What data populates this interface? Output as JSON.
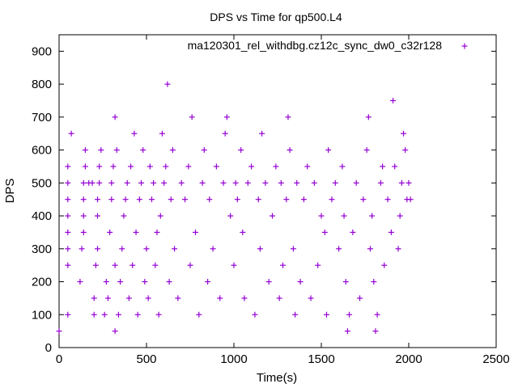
{
  "colors": {
    "series": "#9400d3",
    "axis": "#000000",
    "background": "#ffffff"
  },
  "chart_data": {
    "type": "scatter",
    "title": "DPS vs Time for qp500.L4",
    "xlabel": "Time(s)",
    "ylabel": "DPS",
    "xlim": [
      0,
      2500
    ],
    "ylim": [
      0,
      950
    ],
    "xticks": [
      0,
      500,
      1000,
      1500,
      2000,
      2500
    ],
    "yticks": [
      0,
      100,
      200,
      300,
      400,
      500,
      600,
      700,
      800,
      900
    ],
    "grid": false,
    "legend_position": "top-right",
    "series": [
      {
        "name": "ma120301_rel_withdbg.cz12c_sync_dw0_c32r128",
        "marker": "+",
        "points": [
          [
            0,
            50
          ],
          [
            50,
            100
          ],
          [
            50,
            250
          ],
          [
            50,
            300
          ],
          [
            50,
            350
          ],
          [
            50,
            400
          ],
          [
            50,
            450
          ],
          [
            50,
            500
          ],
          [
            50,
            550
          ],
          [
            70,
            650
          ],
          [
            120,
            200
          ],
          [
            130,
            300
          ],
          [
            140,
            350
          ],
          [
            140,
            400
          ],
          [
            140,
            450
          ],
          [
            140,
            500
          ],
          [
            150,
            550
          ],
          [
            150,
            600
          ],
          [
            170,
            500
          ],
          [
            190,
            500
          ],
          [
            200,
            100
          ],
          [
            200,
            150
          ],
          [
            210,
            250
          ],
          [
            220,
            300
          ],
          [
            220,
            400
          ],
          [
            220,
            450
          ],
          [
            230,
            500
          ],
          [
            230,
            550
          ],
          [
            240,
            600
          ],
          [
            260,
            100
          ],
          [
            270,
            200
          ],
          [
            280,
            150
          ],
          [
            290,
            350
          ],
          [
            300,
            450
          ],
          [
            300,
            500
          ],
          [
            310,
            550
          ],
          [
            320,
            50
          ],
          [
            320,
            250
          ],
          [
            320,
            700
          ],
          [
            330,
            600
          ],
          [
            340,
            100
          ],
          [
            350,
            200
          ],
          [
            360,
            300
          ],
          [
            370,
            400
          ],
          [
            380,
            450
          ],
          [
            390,
            500
          ],
          [
            400,
            150
          ],
          [
            410,
            550
          ],
          [
            420,
            250
          ],
          [
            430,
            650
          ],
          [
            440,
            350
          ],
          [
            450,
            100
          ],
          [
            460,
            450
          ],
          [
            470,
            500
          ],
          [
            480,
            600
          ],
          [
            490,
            200
          ],
          [
            500,
            300
          ],
          [
            510,
            150
          ],
          [
            520,
            550
          ],
          [
            530,
            450
          ],
          [
            540,
            500
          ],
          [
            550,
            250
          ],
          [
            560,
            350
          ],
          [
            570,
            100
          ],
          [
            580,
            400
          ],
          [
            590,
            650
          ],
          [
            600,
            500
          ],
          [
            610,
            550
          ],
          [
            620,
            800
          ],
          [
            630,
            200
          ],
          [
            640,
            450
          ],
          [
            650,
            600
          ],
          [
            660,
            300
          ],
          [
            680,
            150
          ],
          [
            700,
            500
          ],
          [
            720,
            450
          ],
          [
            740,
            550
          ],
          [
            750,
            250
          ],
          [
            760,
            700
          ],
          [
            780,
            350
          ],
          [
            800,
            100
          ],
          [
            820,
            500
          ],
          [
            830,
            600
          ],
          [
            850,
            200
          ],
          [
            860,
            450
          ],
          [
            880,
            300
          ],
          [
            900,
            550
          ],
          [
            920,
            150
          ],
          [
            940,
            500
          ],
          [
            950,
            650
          ],
          [
            960,
            700
          ],
          [
            980,
            400
          ],
          [
            1000,
            250
          ],
          [
            1010,
            500
          ],
          [
            1020,
            450
          ],
          [
            1040,
            600
          ],
          [
            1050,
            350
          ],
          [
            1060,
            150
          ],
          [
            1080,
            500
          ],
          [
            1100,
            550
          ],
          [
            1120,
            100
          ],
          [
            1140,
            450
          ],
          [
            1150,
            300
          ],
          [
            1160,
            650
          ],
          [
            1180,
            500
          ],
          [
            1200,
            200
          ],
          [
            1220,
            400
          ],
          [
            1240,
            550
          ],
          [
            1260,
            150
          ],
          [
            1270,
            500
          ],
          [
            1280,
            250
          ],
          [
            1300,
            450
          ],
          [
            1310,
            700
          ],
          [
            1320,
            600
          ],
          [
            1340,
            300
          ],
          [
            1350,
            100
          ],
          [
            1360,
            500
          ],
          [
            1380,
            200
          ],
          [
            1400,
            450
          ],
          [
            1420,
            550
          ],
          [
            1440,
            150
          ],
          [
            1460,
            500
          ],
          [
            1480,
            250
          ],
          [
            1500,
            400
          ],
          [
            1520,
            350
          ],
          [
            1530,
            100
          ],
          [
            1540,
            600
          ],
          [
            1560,
            450
          ],
          [
            1580,
            500
          ],
          [
            1600,
            300
          ],
          [
            1620,
            550
          ],
          [
            1630,
            400
          ],
          [
            1640,
            200
          ],
          [
            1650,
            50
          ],
          [
            1660,
            100
          ],
          [
            1680,
            350
          ],
          [
            1700,
            500
          ],
          [
            1720,
            150
          ],
          [
            1740,
            450
          ],
          [
            1760,
            600
          ],
          [
            1770,
            700
          ],
          [
            1780,
            300
          ],
          [
            1790,
            400
          ],
          [
            1800,
            200
          ],
          [
            1810,
            50
          ],
          [
            1820,
            100
          ],
          [
            1840,
            500
          ],
          [
            1850,
            550
          ],
          [
            1860,
            250
          ],
          [
            1880,
            450
          ],
          [
            1900,
            350
          ],
          [
            1910,
            750
          ],
          [
            1920,
            550
          ],
          [
            1940,
            300
          ],
          [
            1950,
            400
          ],
          [
            1960,
            500
          ],
          [
            1970,
            650
          ],
          [
            1980,
            600
          ],
          [
            1990,
            450
          ],
          [
            2000,
            500
          ],
          [
            2010,
            450
          ]
        ]
      }
    ]
  }
}
